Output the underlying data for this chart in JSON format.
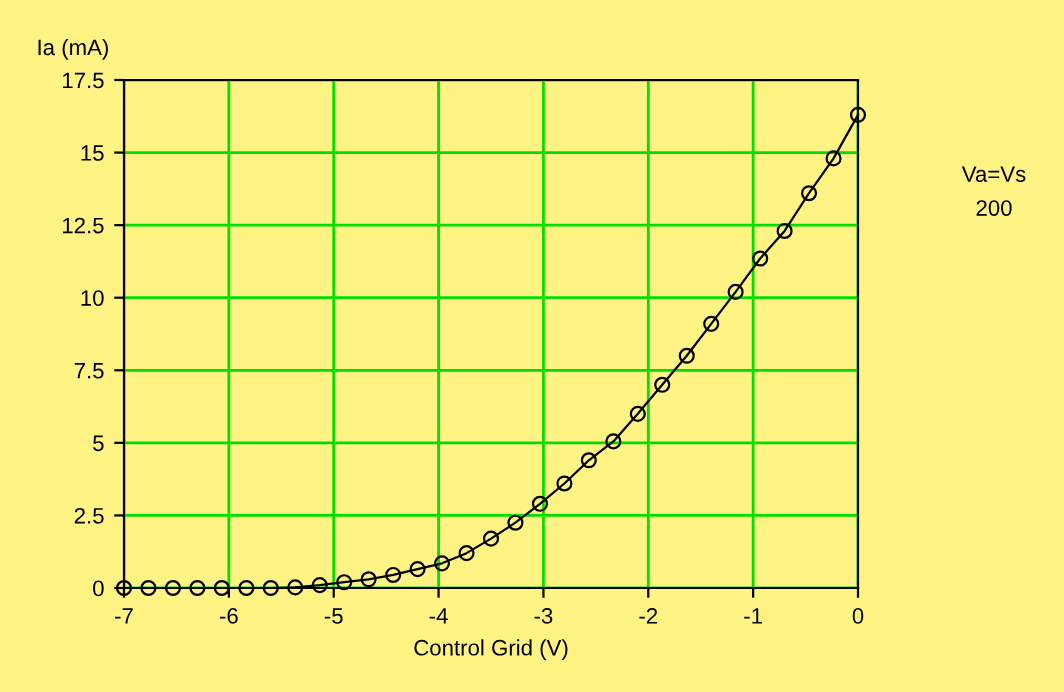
{
  "chart_data": {
    "type": "line",
    "xlabel": "Control Grid (V)",
    "ylabel": "Ia (mA)",
    "annotations": [
      "Va=Vs",
      "200"
    ],
    "series": [
      {
        "color": "#000000",
        "x": [
          -7,
          -6.767,
          -6.533,
          -6.3,
          -6.067,
          -5.833,
          -5.6,
          -5.367,
          -5.133,
          -4.9,
          -4.667,
          -4.433,
          -4.2,
          -3.967,
          -3.733,
          -3.5,
          -3.267,
          -3.033,
          -2.8,
          -2.567,
          -2.333,
          -2.1,
          -1.867,
          -1.633,
          -1.4,
          -1.167,
          -0.933,
          -0.7,
          -0.467,
          -0.233,
          0
        ],
        "values": [
          0,
          0,
          0,
          0,
          0,
          0,
          0,
          0.02,
          0.1,
          0.2,
          0.3,
          0.45,
          0.65,
          0.85,
          1.2,
          1.7,
          2.25,
          2.9,
          3.6,
          4.4,
          5.05,
          6.0,
          7.0,
          8.0,
          9.1,
          10.2,
          11.35,
          12.3,
          13.6,
          14.8,
          16.3
        ]
      }
    ],
    "xlim": [
      -7,
      0
    ],
    "ylim": [
      0,
      17.5
    ],
    "xticks": [
      -7,
      -6,
      -5,
      -4,
      -3,
      -2,
      -1,
      0
    ],
    "yticks": [
      0,
      2.5,
      5,
      7.5,
      10,
      12.5,
      15,
      17.5
    ],
    "grid": true,
    "marker": "circle",
    "line_style": "solid",
    "legend": false
  }
}
